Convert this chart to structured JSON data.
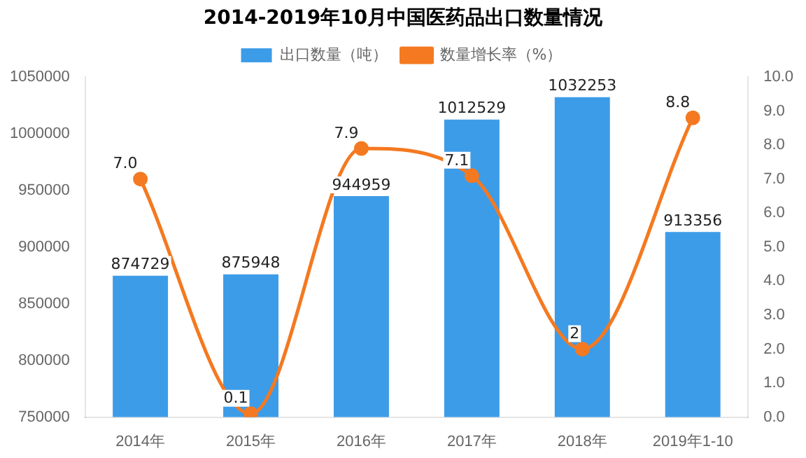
{
  "chart_data": {
    "type": "bar",
    "title": "2014-2019年10月中国医药品出口数量情况",
    "categories": [
      "2014年",
      "2015年",
      "2016年",
      "2017年",
      "2018年",
      "2019年1-10"
    ],
    "series": [
      {
        "name": "出口数量（吨）",
        "color": "#3d9ce8",
        "values": [
          874729,
          875948,
          944959,
          1012529,
          1032253,
          913356
        ],
        "value_labels": [
          "874729",
          "875948",
          "944959",
          "1012529",
          "1032253",
          "913356"
        ]
      },
      {
        "name": "数量增长率（%）",
        "type": "line",
        "axis": "y2",
        "color": "#f47920",
        "values": [
          7.0,
          0.1,
          7.9,
          7.1,
          2,
          8.8
        ],
        "value_labels": [
          "7.0",
          "0.1",
          "7.9",
          "7.1",
          "2",
          "8.8"
        ],
        "marker": "circle"
      }
    ],
    "ylim": [
      750000,
      1050000
    ],
    "yticks": [
      750000,
      800000,
      850000,
      900000,
      950000,
      1000000,
      1050000
    ],
    "y2lim": [
      0,
      10
    ],
    "y2ticks": [
      {
        "value": 0,
        "label": "0.0"
      },
      {
        "value": 1,
        "label": "1.0"
      },
      {
        "value": 2,
        "label": "2.0"
      },
      {
        "value": 3,
        "label": "3.0"
      },
      {
        "value": 4,
        "label": "4.0"
      },
      {
        "value": 5,
        "label": "5.0"
      },
      {
        "value": 6,
        "label": "6.0"
      },
      {
        "value": 7,
        "label": "7.0"
      },
      {
        "value": 8,
        "label": "8.0"
      },
      {
        "value": 9,
        "label": "9.0"
      },
      {
        "value": 10,
        "label": "10.0"
      }
    ],
    "grid": false,
    "legend": "top"
  }
}
